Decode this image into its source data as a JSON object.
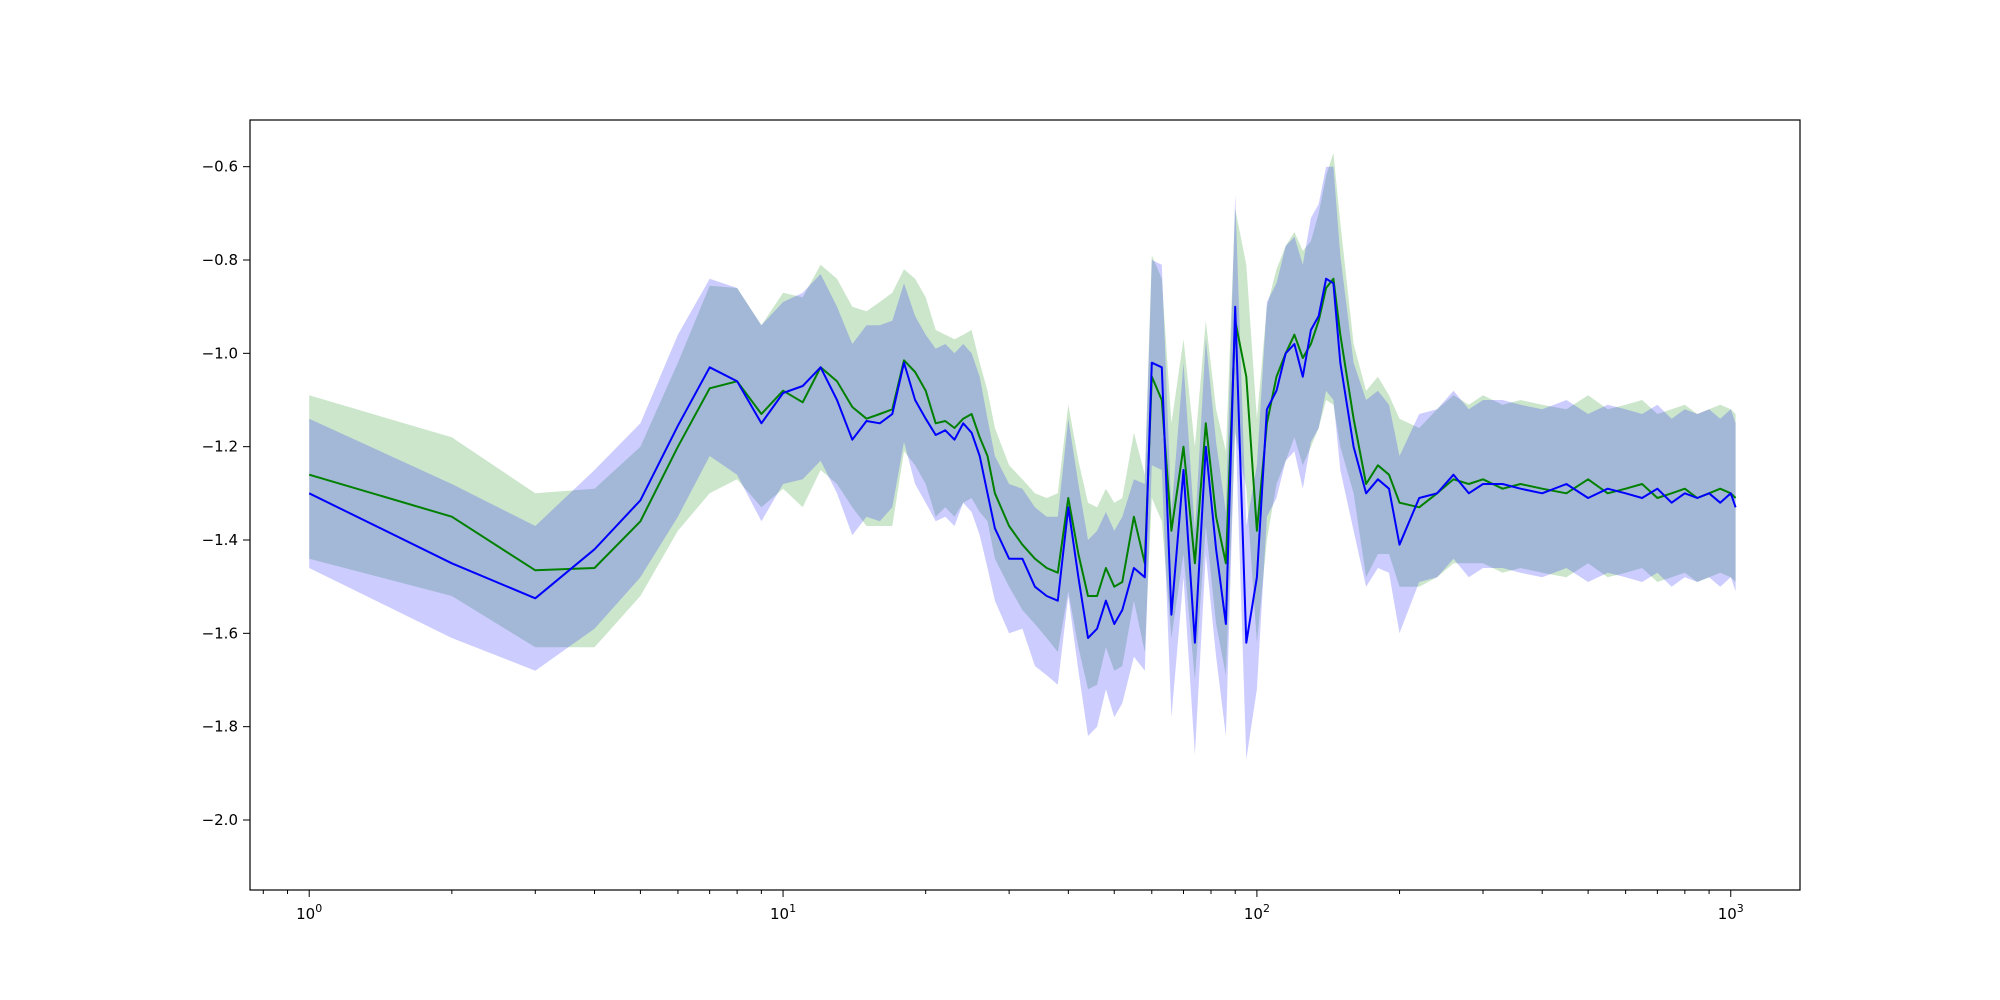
{
  "chart_data": {
    "type": "line",
    "title": "",
    "xlabel": "",
    "ylabel": "",
    "x_scale": "log",
    "xlim": [
      0.75,
      1400
    ],
    "ylim": [
      -2.15,
      -0.5
    ],
    "grid": false,
    "legend": "none",
    "x_ticks": [
      {
        "value": 1,
        "base": "10",
        "exp": "0"
      },
      {
        "value": 10,
        "base": "10",
        "exp": "1"
      },
      {
        "value": 100,
        "base": "10",
        "exp": "2"
      },
      {
        "value": 1000,
        "base": "10",
        "exp": "3"
      }
    ],
    "y_ticks": [
      {
        "value": -0.6,
        "label": "−0.6"
      },
      {
        "value": -0.8,
        "label": "−0.8"
      },
      {
        "value": -1.0,
        "label": "−1.0"
      },
      {
        "value": -1.2,
        "label": "−1.2"
      },
      {
        "value": -1.4,
        "label": "−1.4"
      },
      {
        "value": -1.6,
        "label": "−1.6"
      },
      {
        "value": -1.8,
        "label": "−1.8"
      },
      {
        "value": -2.0,
        "label": "−2.0"
      }
    ],
    "series": [
      {
        "color": "#008000",
        "band_color": "#008000",
        "band_opacity": 0.2,
        "x": [
          1,
          2,
          3,
          4,
          5,
          6,
          7,
          8,
          9,
          10,
          11,
          12,
          13,
          14,
          15,
          16,
          17,
          18,
          19,
          20,
          21,
          22,
          23,
          24,
          25,
          26,
          27,
          28,
          30,
          32,
          34,
          36,
          38,
          40,
          42,
          44,
          46,
          48,
          50,
          52,
          55,
          58,
          60,
          63,
          66,
          70,
          74,
          78,
          82,
          86,
          90,
          95,
          100,
          105,
          110,
          115,
          120,
          125,
          130,
          135,
          140,
          145,
          150,
          160,
          170,
          180,
          190,
          200,
          220,
          240,
          260,
          280,
          300,
          330,
          360,
          400,
          450,
          500,
          550,
          600,
          650,
          700,
          750,
          800,
          850,
          900,
          950,
          1000,
          1024
        ],
        "mean": [
          -1.26,
          -1.35,
          -1.465,
          -1.46,
          -1.36,
          -1.2,
          -1.075,
          -1.06,
          -1.13,
          -1.08,
          -1.105,
          -1.03,
          -1.06,
          -1.115,
          -1.14,
          -1.13,
          -1.12,
          -1.015,
          -1.04,
          -1.08,
          -1.15,
          -1.145,
          -1.16,
          -1.14,
          -1.13,
          -1.18,
          -1.22,
          -1.3,
          -1.37,
          -1.41,
          -1.44,
          -1.46,
          -1.47,
          -1.31,
          -1.43,
          -1.52,
          -1.52,
          -1.46,
          -1.5,
          -1.49,
          -1.35,
          -1.45,
          -1.05,
          -1.1,
          -1.38,
          -1.2,
          -1.45,
          -1.15,
          -1.35,
          -1.45,
          -0.93,
          -1.05,
          -1.38,
          -1.15,
          -1.05,
          -1.0,
          -0.96,
          -1.01,
          -0.98,
          -0.93,
          -0.86,
          -0.84,
          -0.96,
          -1.14,
          -1.28,
          -1.24,
          -1.26,
          -1.32,
          -1.33,
          -1.3,
          -1.27,
          -1.28,
          -1.27,
          -1.29,
          -1.28,
          -1.29,
          -1.3,
          -1.27,
          -1.3,
          -1.29,
          -1.28,
          -1.31,
          -1.3,
          -1.29,
          -1.31,
          -1.3,
          -1.29,
          -1.3,
          -1.31
        ],
        "upper": [
          -1.09,
          -1.18,
          -1.3,
          -1.29,
          -1.2,
          -1.02,
          -0.855,
          -0.86,
          -0.94,
          -0.87,
          -0.88,
          -0.81,
          -0.84,
          -0.9,
          -0.91,
          -0.89,
          -0.87,
          -0.82,
          -0.84,
          -0.88,
          -0.95,
          -0.96,
          -0.97,
          -0.96,
          -0.95,
          -1.02,
          -1.08,
          -1.16,
          -1.24,
          -1.27,
          -1.3,
          -1.31,
          -1.3,
          -1.11,
          -1.23,
          -1.32,
          -1.33,
          -1.29,
          -1.32,
          -1.31,
          -1.17,
          -1.26,
          -0.79,
          -0.84,
          -1.15,
          -0.97,
          -1.2,
          -0.93,
          -1.12,
          -1.21,
          -0.69,
          -0.81,
          -1.14,
          -0.9,
          -0.82,
          -0.77,
          -0.74,
          -0.78,
          -0.76,
          -0.7,
          -0.62,
          -0.57,
          -0.72,
          -0.98,
          -1.08,
          -1.05,
          -1.09,
          -1.14,
          -1.16,
          -1.12,
          -1.09,
          -1.11,
          -1.09,
          -1.11,
          -1.1,
          -1.11,
          -1.12,
          -1.09,
          -1.12,
          -1.11,
          -1.1,
          -1.13,
          -1.12,
          -1.11,
          -1.13,
          -1.12,
          -1.11,
          -1.12,
          -1.13
        ],
        "lower": [
          -1.44,
          -1.52,
          -1.63,
          -1.63,
          -1.52,
          -1.38,
          -1.3,
          -1.27,
          -1.33,
          -1.29,
          -1.33,
          -1.25,
          -1.28,
          -1.33,
          -1.37,
          -1.37,
          -1.37,
          -1.21,
          -1.24,
          -1.28,
          -1.35,
          -1.33,
          -1.35,
          -1.32,
          -1.31,
          -1.34,
          -1.36,
          -1.44,
          -1.5,
          -1.55,
          -1.58,
          -1.61,
          -1.64,
          -1.51,
          -1.63,
          -1.72,
          -1.71,
          -1.63,
          -1.68,
          -1.67,
          -1.53,
          -1.64,
          -1.31,
          -1.36,
          -1.61,
          -1.43,
          -1.7,
          -1.37,
          -1.58,
          -1.69,
          -1.17,
          -1.29,
          -1.62,
          -1.4,
          -1.28,
          -1.23,
          -1.18,
          -1.24,
          -1.2,
          -1.16,
          -1.1,
          -1.11,
          -1.2,
          -1.3,
          -1.48,
          -1.43,
          -1.43,
          -1.5,
          -1.5,
          -1.48,
          -1.45,
          -1.45,
          -1.45,
          -1.47,
          -1.46,
          -1.47,
          -1.48,
          -1.45,
          -1.48,
          -1.47,
          -1.46,
          -1.49,
          -1.48,
          -1.47,
          -1.49,
          -1.48,
          -1.47,
          -1.48,
          -1.49
        ]
      },
      {
        "color": "#0000ff",
        "band_color": "#0000ff",
        "band_opacity": 0.2,
        "x": [
          1,
          2,
          3,
          4,
          5,
          6,
          7,
          8,
          9,
          10,
          11,
          12,
          13,
          14,
          15,
          16,
          17,
          18,
          19,
          20,
          21,
          22,
          23,
          24,
          25,
          26,
          27,
          28,
          30,
          32,
          34,
          36,
          38,
          40,
          42,
          44,
          46,
          48,
          50,
          52,
          55,
          58,
          60,
          63,
          66,
          70,
          74,
          78,
          82,
          86,
          90,
          95,
          100,
          105,
          110,
          115,
          120,
          125,
          130,
          135,
          140,
          145,
          150,
          160,
          170,
          180,
          190,
          200,
          220,
          240,
          260,
          280,
          300,
          330,
          360,
          400,
          450,
          500,
          550,
          600,
          650,
          700,
          750,
          800,
          850,
          900,
          950,
          1000,
          1024
        ],
        "mean": [
          -1.3,
          -1.45,
          -1.525,
          -1.42,
          -1.315,
          -1.155,
          -1.03,
          -1.06,
          -1.15,
          -1.085,
          -1.07,
          -1.03,
          -1.1,
          -1.185,
          -1.145,
          -1.15,
          -1.13,
          -1.02,
          -1.1,
          -1.14,
          -1.175,
          -1.165,
          -1.185,
          -1.15,
          -1.17,
          -1.22,
          -1.3,
          -1.375,
          -1.44,
          -1.44,
          -1.5,
          -1.52,
          -1.53,
          -1.33,
          -1.48,
          -1.61,
          -1.59,
          -1.53,
          -1.58,
          -1.55,
          -1.46,
          -1.48,
          -1.02,
          -1.03,
          -1.56,
          -1.25,
          -1.62,
          -1.2,
          -1.42,
          -1.58,
          -0.9,
          -1.62,
          -1.48,
          -1.12,
          -1.08,
          -1.0,
          -0.98,
          -1.05,
          -0.95,
          -0.92,
          -0.84,
          -0.85,
          -1.02,
          -1.2,
          -1.3,
          -1.27,
          -1.29,
          -1.41,
          -1.31,
          -1.3,
          -1.26,
          -1.3,
          -1.28,
          -1.28,
          -1.29,
          -1.3,
          -1.28,
          -1.31,
          -1.29,
          -1.3,
          -1.31,
          -1.29,
          -1.32,
          -1.3,
          -1.31,
          -1.3,
          -1.32,
          -1.3,
          -1.33
        ],
        "upper": [
          -1.14,
          -1.28,
          -1.37,
          -1.25,
          -1.15,
          -0.96,
          -0.84,
          -0.86,
          -0.94,
          -0.89,
          -0.87,
          -0.83,
          -0.9,
          -0.98,
          -0.94,
          -0.94,
          -0.93,
          -0.85,
          -0.92,
          -0.96,
          -0.99,
          -0.98,
          -1.0,
          -0.98,
          -1.0,
          -1.05,
          -1.14,
          -1.22,
          -1.28,
          -1.29,
          -1.33,
          -1.35,
          -1.35,
          -1.14,
          -1.28,
          -1.4,
          -1.38,
          -1.34,
          -1.38,
          -1.35,
          -1.27,
          -1.28,
          -0.8,
          -0.81,
          -1.34,
          -1.02,
          -1.38,
          -0.97,
          -1.19,
          -1.34,
          -0.66,
          -1.37,
          -1.24,
          -0.89,
          -0.85,
          -0.77,
          -0.75,
          -0.81,
          -0.71,
          -0.68,
          -0.6,
          -0.6,
          -0.79,
          -1.02,
          -1.1,
          -1.08,
          -1.11,
          -1.22,
          -1.13,
          -1.12,
          -1.08,
          -1.12,
          -1.1,
          -1.1,
          -1.11,
          -1.12,
          -1.1,
          -1.13,
          -1.11,
          -1.12,
          -1.13,
          -1.11,
          -1.14,
          -1.12,
          -1.13,
          -1.12,
          -1.14,
          -1.12,
          -1.15
        ],
        "lower": [
          -1.46,
          -1.61,
          -1.68,
          -1.59,
          -1.48,
          -1.35,
          -1.22,
          -1.26,
          -1.36,
          -1.28,
          -1.27,
          -1.23,
          -1.3,
          -1.39,
          -1.35,
          -1.36,
          -1.33,
          -1.19,
          -1.28,
          -1.32,
          -1.36,
          -1.35,
          -1.37,
          -1.32,
          -1.34,
          -1.39,
          -1.46,
          -1.53,
          -1.6,
          -1.59,
          -1.67,
          -1.69,
          -1.71,
          -1.52,
          -1.68,
          -1.82,
          -1.8,
          -1.72,
          -1.78,
          -1.75,
          -1.65,
          -1.68,
          -1.24,
          -1.25,
          -1.78,
          -1.48,
          -1.86,
          -1.43,
          -1.65,
          -1.82,
          -1.14,
          -1.87,
          -1.72,
          -1.35,
          -1.31,
          -1.23,
          -1.21,
          -1.29,
          -1.19,
          -1.16,
          -1.08,
          -1.1,
          -1.25,
          -1.38,
          -1.5,
          -1.46,
          -1.47,
          -1.6,
          -1.49,
          -1.48,
          -1.44,
          -1.48,
          -1.46,
          -1.46,
          -1.47,
          -1.48,
          -1.46,
          -1.49,
          -1.47,
          -1.48,
          -1.49,
          -1.47,
          -1.5,
          -1.48,
          -1.49,
          -1.48,
          -1.5,
          -1.48,
          -1.51
        ]
      }
    ]
  }
}
